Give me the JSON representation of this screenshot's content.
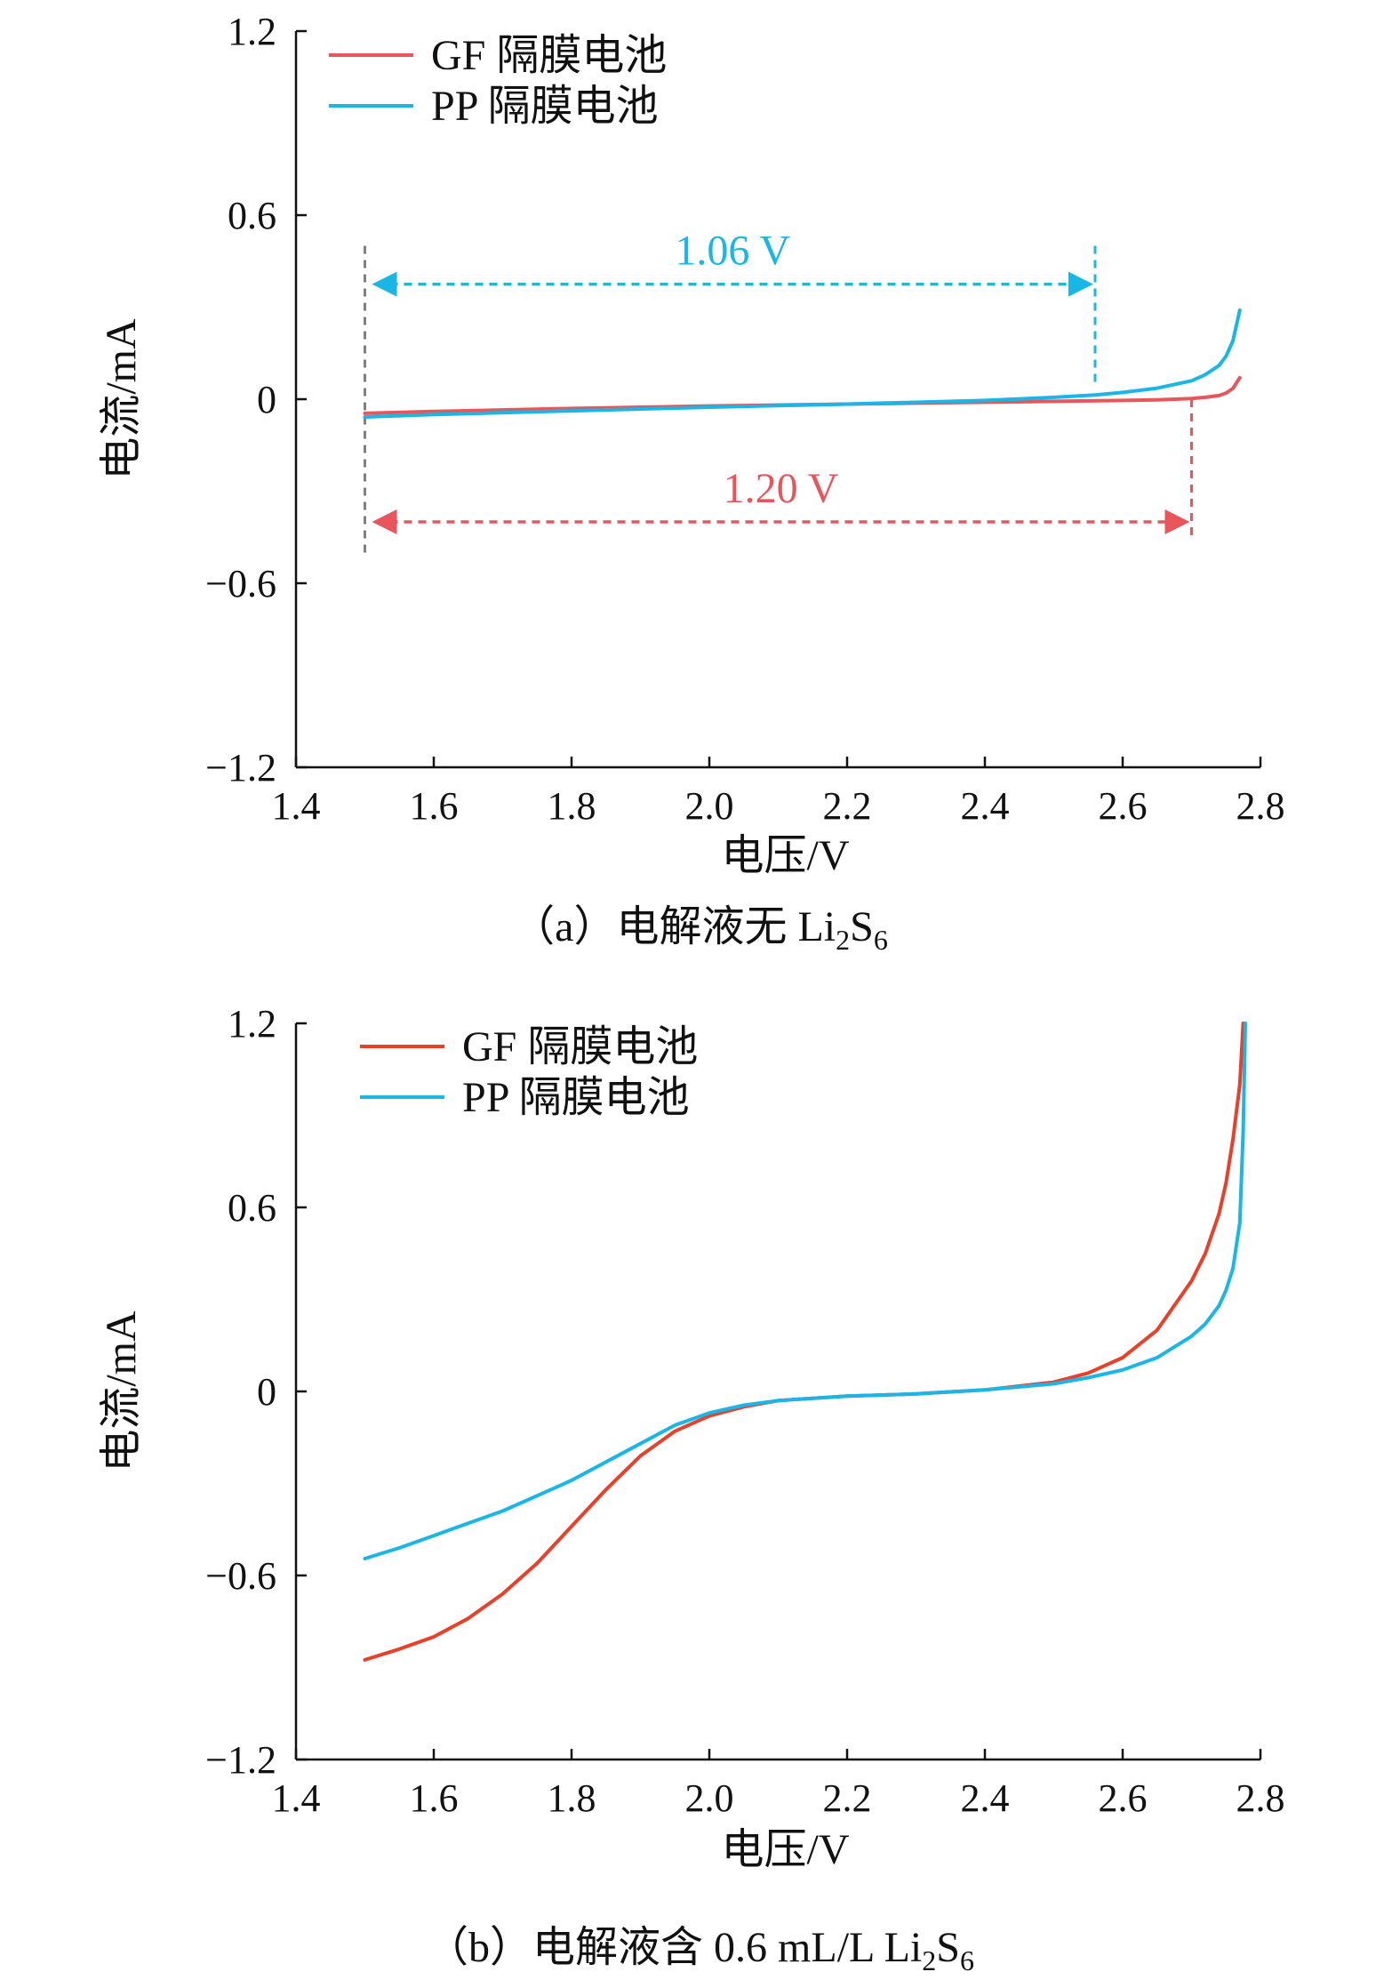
{
  "colors": {
    "gf_a": "#e8555a",
    "gf_b": "#e8402a",
    "pp": "#1ab6e6",
    "ref_line": "#7f7f7f",
    "axis": "#111111"
  },
  "chart_data": [
    {
      "id": "a",
      "type": "line",
      "caption_prefix": "（a）电解液无 Li",
      "caption_sub1": "2",
      "caption_mid": "S",
      "caption_sub2": "6",
      "xlabel": "电压/V",
      "ylabel": "电流/mA",
      "xlim": [
        1.4,
        2.8
      ],
      "ylim": [
        -1.2,
        1.2
      ],
      "xticks": [
        1.4,
        1.6,
        1.8,
        2.0,
        2.2,
        2.4,
        2.6,
        2.8
      ],
      "xtick_labels": [
        "1.4",
        "1.6",
        "1.8",
        "2.0",
        "2.2",
        "2.4",
        "2.6",
        "2.8"
      ],
      "yticks": [
        1.2,
        0.6,
        0,
        -0.6,
        -1.2
      ],
      "ytick_labels": [
        "1.2",
        "0.6",
        "0",
        "−0.6",
        "−1.2"
      ],
      "legend_position": "top-left",
      "series": [
        {
          "name": "GF 隔膜电池",
          "color_key": "gf_a",
          "x": [
            1.5,
            1.6,
            1.8,
            2.0,
            2.2,
            2.4,
            2.5,
            2.6,
            2.65,
            2.7,
            2.72,
            2.74,
            2.75,
            2.76,
            2.77
          ],
          "y": [
            -0.046,
            -0.04,
            -0.03,
            -0.022,
            -0.016,
            -0.01,
            -0.007,
            -0.004,
            -0.002,
            0.002,
            0.006,
            0.012,
            0.02,
            0.035,
            0.07
          ]
        },
        {
          "name": "PP 隔膜电池",
          "color_key": "pp",
          "x": [
            1.5,
            1.6,
            1.8,
            2.0,
            2.2,
            2.4,
            2.5,
            2.56,
            2.6,
            2.65,
            2.7,
            2.72,
            2.74,
            2.75,
            2.76,
            2.765,
            2.77
          ],
          "y": [
            -0.058,
            -0.05,
            -0.038,
            -0.026,
            -0.016,
            -0.004,
            0.006,
            0.014,
            0.022,
            0.036,
            0.06,
            0.08,
            0.11,
            0.14,
            0.19,
            0.24,
            0.29
          ]
        }
      ],
      "annotations": [
        {
          "text": "1.06 V",
          "color_key": "pp",
          "x_from": 1.5,
          "x_to": 2.56,
          "y": 0.375,
          "guide_y_from": 0.5,
          "guide_y_to": 0.04
        },
        {
          "text": "1.20 V",
          "color_key": "gf_a",
          "x_from": 1.5,
          "x_to": 2.7,
          "y": -0.4,
          "guide_y_from": 0.0,
          "guide_y_to": -0.46
        }
      ],
      "reference_line": {
        "x": 1.5,
        "y_from": 0.5,
        "y_to": -0.5,
        "color_key": "ref_line"
      }
    },
    {
      "id": "b",
      "type": "line",
      "caption_prefix": "（b）电解液含 0.6 mL/L Li",
      "caption_sub1": "2",
      "caption_mid": "S",
      "caption_sub2": "6",
      "xlabel": "电压/V",
      "ylabel": "电流/mA",
      "xlim": [
        1.4,
        2.8
      ],
      "ylim": [
        -1.2,
        1.2
      ],
      "xticks": [
        1.4,
        1.6,
        1.8,
        2.0,
        2.2,
        2.4,
        2.6,
        2.8
      ],
      "xtick_labels": [
        "1.4",
        "1.6",
        "1.8",
        "2.0",
        "2.2",
        "2.4",
        "2.6",
        "2.8"
      ],
      "yticks": [
        1.2,
        0.6,
        0,
        -0.6,
        -1.2
      ],
      "ytick_labels": [
        "1.2",
        "0.6",
        "0",
        "−0.6",
        "−1.2"
      ],
      "legend_position": "top-left",
      "series": [
        {
          "name": "GF 隔膜电池",
          "color_key": "gf_b",
          "x": [
            1.5,
            1.55,
            1.6,
            1.65,
            1.7,
            1.75,
            1.8,
            1.85,
            1.9,
            1.95,
            2.0,
            2.05,
            2.1,
            2.2,
            2.3,
            2.4,
            2.5,
            2.55,
            2.6,
            2.65,
            2.7,
            2.72,
            2.74,
            2.75,
            2.76,
            2.77,
            2.775
          ],
          "y": [
            -0.875,
            -0.84,
            -0.8,
            -0.74,
            -0.66,
            -0.56,
            -0.44,
            -0.32,
            -0.21,
            -0.13,
            -0.08,
            -0.05,
            -0.03,
            -0.015,
            -0.008,
            0.005,
            0.03,
            0.06,
            0.11,
            0.2,
            0.36,
            0.45,
            0.58,
            0.68,
            0.82,
            1.0,
            1.2
          ]
        },
        {
          "name": "PP 隔膜电池",
          "color_key": "pp",
          "x": [
            1.5,
            1.55,
            1.6,
            1.65,
            1.7,
            1.75,
            1.8,
            1.85,
            1.9,
            1.95,
            2.0,
            2.05,
            2.1,
            2.2,
            2.3,
            2.4,
            2.5,
            2.55,
            2.6,
            2.65,
            2.7,
            2.72,
            2.74,
            2.75,
            2.76,
            2.77,
            2.775,
            2.778
          ],
          "y": [
            -0.545,
            -0.51,
            -0.47,
            -0.43,
            -0.39,
            -0.34,
            -0.29,
            -0.23,
            -0.17,
            -0.11,
            -0.07,
            -0.045,
            -0.03,
            -0.015,
            -0.008,
            0.005,
            0.025,
            0.045,
            0.07,
            0.11,
            0.18,
            0.22,
            0.28,
            0.33,
            0.4,
            0.55,
            0.85,
            1.2
          ]
        }
      ],
      "annotations": []
    }
  ]
}
